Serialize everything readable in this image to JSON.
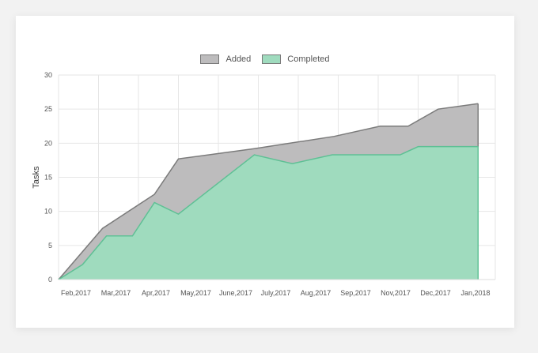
{
  "legend": {
    "added_label": "Added",
    "completed_label": "Completed",
    "added_color": "#bdbcbd",
    "completed_color": "#9fdbbe"
  },
  "chart_data": {
    "type": "area",
    "ylabel": "Tasks",
    "xlabel": "",
    "ylim": [
      0,
      30
    ],
    "yticks": [
      0,
      5,
      10,
      15,
      20,
      25,
      30
    ],
    "categories": [
      "Feb,2017",
      "Mar,2017",
      "Apr,2017",
      "May,2017",
      "June,2017",
      "July,2017",
      "Aug,2017",
      "Sep,2017",
      "Nov,2017",
      "Dec,2017",
      "Jan,2018"
    ],
    "grid": true,
    "legend_position": "top-center",
    "series": [
      {
        "name": "Added",
        "color": "#bdbcbd",
        "line_color": "#7b7b7b",
        "points": [
          [
            0,
            0
          ],
          [
            1.1,
            7.5
          ],
          [
            2.4,
            12.5
          ],
          [
            3.0,
            17.7
          ],
          [
            4.9,
            19.2
          ],
          [
            6.9,
            21.0
          ],
          [
            8.05,
            22.5
          ],
          [
            8.75,
            22.5
          ],
          [
            9.5,
            25.0
          ],
          [
            10.5,
            25.8
          ]
        ]
      },
      {
        "name": "Completed",
        "color": "#9fdbbe",
        "line_color": "#5fc095",
        "points": [
          [
            0,
            0
          ],
          [
            0.6,
            2.2
          ],
          [
            1.2,
            6.4
          ],
          [
            1.85,
            6.4
          ],
          [
            2.4,
            11.3
          ],
          [
            3.0,
            9.6
          ],
          [
            4.9,
            18.3
          ],
          [
            5.85,
            17.0
          ],
          [
            6.85,
            18.3
          ],
          [
            7.95,
            18.3
          ],
          [
            8.55,
            18.3
          ],
          [
            9.0,
            19.5
          ],
          [
            10.05,
            19.5
          ],
          [
            10.5,
            19.5
          ]
        ]
      }
    ]
  }
}
